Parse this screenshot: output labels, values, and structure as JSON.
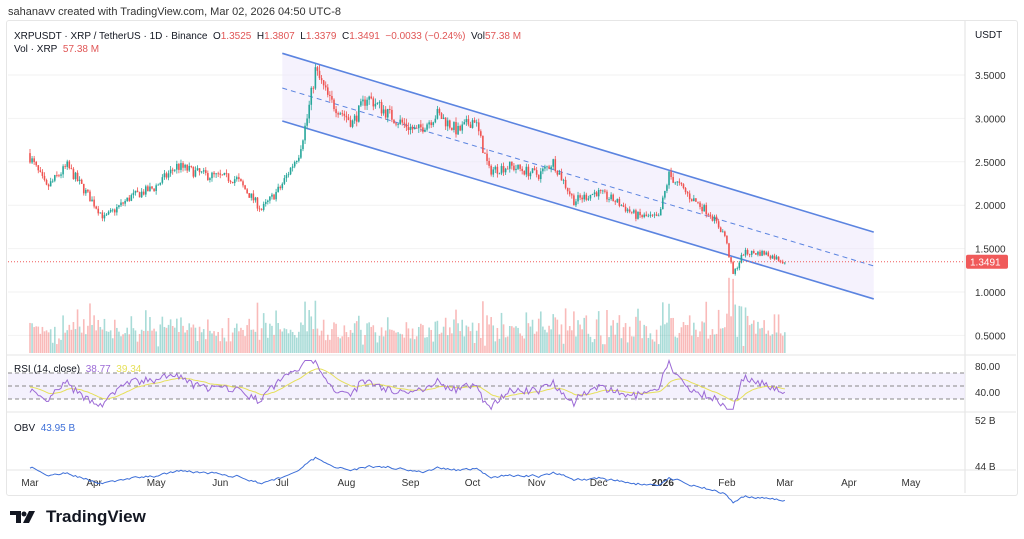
{
  "credit": "sahanavv created with TradingView.com, Mar 02, 2026 04:50 UTC-8",
  "legend": {
    "symbol": "XRPUSDT · XRP / TetherUS · 1D · Binance",
    "o_label": "O",
    "o": "1.3525",
    "h_label": "H",
    "h": "1.3807",
    "l_label": "L",
    "l": "1.3379",
    "c_label": "C",
    "c": "1.3491",
    "change": "−0.0033 (−0.24%)",
    "vol_label": "Vol",
    "vol": "57.38 M",
    "vol2_label": "Vol · XRP",
    "vol2": "57.38 M"
  },
  "currency": "USDT",
  "rsi": {
    "label": "RSI (14, close)",
    "value": "38.77",
    "ma": "39.34",
    "ticks": [
      "80.00",
      "40.00"
    ]
  },
  "obv": {
    "label": "OBV",
    "value": "43.95 B",
    "ticks": [
      "52 B",
      "44 B"
    ]
  },
  "footer": {
    "brand": "TradingView"
  },
  "colors": {
    "up": "#26a69a",
    "down": "#ef5350",
    "channel": "#5b84e0",
    "last_price": "#f05a5a",
    "rsi": "#9c6ad6",
    "rsi_ma": "#e6e05a",
    "obv": "#3d6fd8"
  },
  "chart_data": {
    "type": "candlestick",
    "ylim": [
      0.3,
      3.85
    ],
    "y_ticks": [
      "3.5000",
      "3.0000",
      "2.5000",
      "2.0000",
      "1.5000",
      "1.0000",
      "0.5000"
    ],
    "last_price": "1.3491",
    "x_ticks": [
      "Mar",
      "Apr",
      "May",
      "Jun",
      "Jul",
      "Aug",
      "Sep",
      "Oct",
      "Nov",
      "Dec",
      "2026",
      "Feb",
      "Mar",
      "Apr",
      "May"
    ],
    "x_tick_dates": [
      "2025-03-01",
      "2025-04-01",
      "2025-05-01",
      "2025-06-01",
      "2025-07-01",
      "2025-08-01",
      "2025-09-01",
      "2025-10-01",
      "2025-11-01",
      "2025-12-01",
      "2026-01-01",
      "2026-02-01",
      "2026-03-01",
      "2026-04-01",
      "2026-05-01"
    ],
    "closes": [
      [
        "2025-03-01",
        2.6
      ],
      [
        "2025-03-10",
        2.2
      ],
      [
        "2025-03-20",
        2.45
      ],
      [
        "2025-04-07",
        1.85
      ],
      [
        "2025-04-20",
        2.1
      ],
      [
        "2025-05-01",
        2.2
      ],
      [
        "2025-05-12",
        2.45
      ],
      [
        "2025-05-25",
        2.35
      ],
      [
        "2025-06-10",
        2.3
      ],
      [
        "2025-06-22",
        1.95
      ],
      [
        "2025-07-01",
        2.2
      ],
      [
        "2025-07-10",
        2.6
      ],
      [
        "2025-07-14",
        3.0
      ],
      [
        "2025-07-18",
        3.55
      ],
      [
        "2025-07-25",
        3.2
      ],
      [
        "2025-08-05",
        2.95
      ],
      [
        "2025-08-12",
        3.25
      ],
      [
        "2025-08-25",
        3.0
      ],
      [
        "2025-09-05",
        2.85
      ],
      [
        "2025-09-15",
        3.05
      ],
      [
        "2025-09-25",
        2.85
      ],
      [
        "2025-10-03",
        3.0
      ],
      [
        "2025-10-10",
        2.4
      ],
      [
        "2025-10-20",
        2.45
      ],
      [
        "2025-11-03",
        2.35
      ],
      [
        "2025-11-10",
        2.5
      ],
      [
        "2025-11-20",
        2.05
      ],
      [
        "2025-12-01",
        2.15
      ],
      [
        "2025-12-10",
        2.05
      ],
      [
        "2025-12-20",
        1.88
      ],
      [
        "2025-12-31",
        1.85
      ],
      [
        "2026-01-05",
        2.35
      ],
      [
        "2026-01-15",
        2.1
      ],
      [
        "2026-01-25",
        1.9
      ],
      [
        "2026-02-01",
        1.65
      ],
      [
        "2026-02-05",
        1.2
      ],
      [
        "2026-02-10",
        1.45
      ],
      [
        "2026-02-20",
        1.45
      ],
      [
        "2026-03-02",
        1.35
      ]
    ],
    "channel": {
      "upper": [
        [
          "2025-07-01",
          3.75
        ],
        [
          "2026-04-13",
          1.69
        ]
      ],
      "middle": [
        [
          "2025-07-01",
          3.35
        ],
        [
          "2026-04-13",
          1.3
        ]
      ],
      "lower": [
        [
          "2025-07-01",
          2.97
        ],
        [
          "2026-04-13",
          0.92
        ]
      ]
    }
  }
}
